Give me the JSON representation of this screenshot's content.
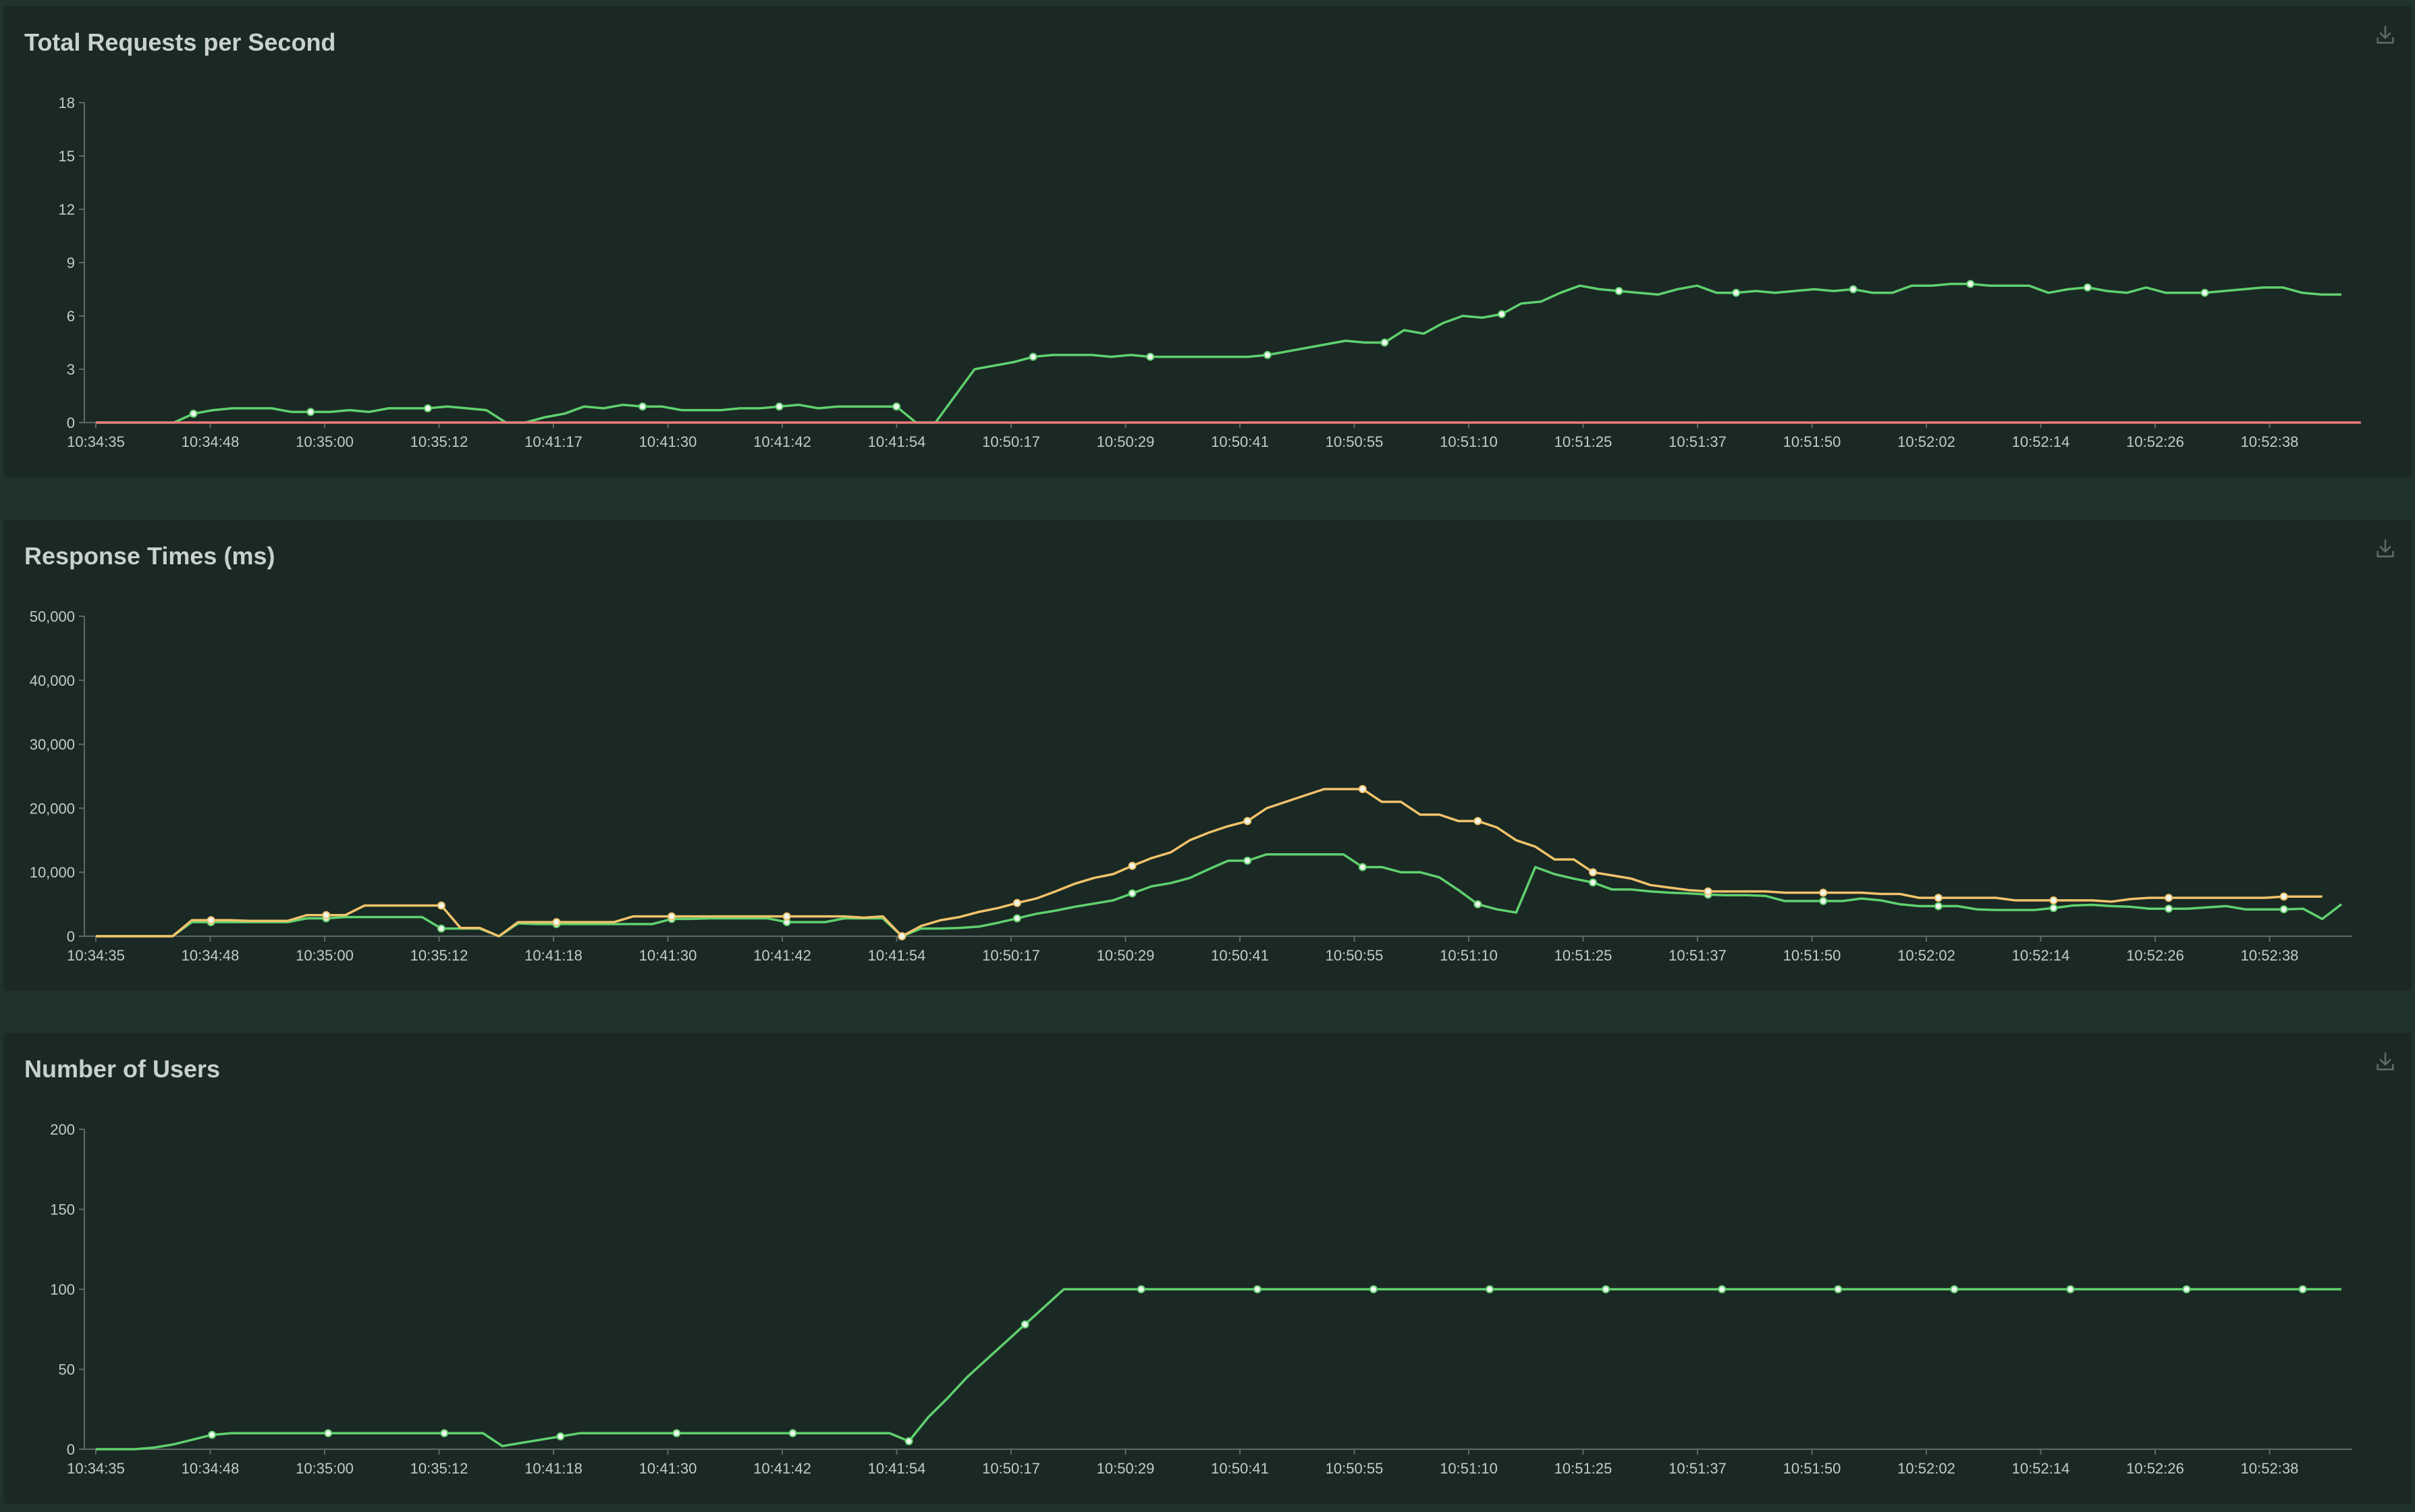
{
  "colors": {
    "page_bg": "#1f332c",
    "panel_bg": "#1b2924",
    "title": "#c8d1cd",
    "axis": "#5d6a65",
    "tick_text": "#c3cbc7",
    "green": "#5fd16e",
    "orange": "#f2c36b",
    "red": "#ef7b7b",
    "dot": "#f0f5ee",
    "icon": "#5f6b66"
  },
  "chart_data": [
    {
      "type": "line",
      "title": "Total Requests per Second",
      "download_icon": "download-icon",
      "ylim": [
        0,
        18
      ],
      "yticks": [
        0,
        3,
        6,
        9,
        12,
        15,
        18
      ],
      "ytick_labels": [
        "0",
        "3",
        "6",
        "9",
        "12",
        "15",
        "18"
      ],
      "xtick_labels": [
        "10:34:35",
        "10:34:48",
        "10:35:00",
        "10:35:12",
        "10:41:17",
        "10:41:30",
        "10:41:42",
        "10:41:54",
        "10:50:17",
        "10:50:29",
        "10:50:41",
        "10:50:55",
        "10:51:10",
        "10:51:25",
        "10:51:37",
        "10:51:50",
        "10:52:02",
        "10:52:14",
        "10:52:26",
        "10:52:38"
      ],
      "grid": false,
      "series": [
        {
          "color_key": "green",
          "values": [
            0,
            0,
            0,
            0,
            0,
            0.5,
            0.7,
            0.8,
            0.8,
            0.8,
            0.6,
            0.6,
            0.6,
            0.7,
            0.6,
            0.8,
            0.8,
            0.8,
            0.9,
            0.8,
            0.7,
            0,
            0,
            0.3,
            0.5,
            0.9,
            0.8,
            1.0,
            0.9,
            0.9,
            0.7,
            0.7,
            0.7,
            0.8,
            0.8,
            0.9,
            1.0,
            0.8,
            0.9,
            0.9,
            0.9,
            0.9,
            0,
            0,
            1.5,
            3.0,
            3.2,
            3.4,
            3.7,
            3.8,
            3.8,
            3.8,
            3.7,
            3.8,
            3.7,
            3.7,
            3.7,
            3.7,
            3.7,
            3.7,
            3.8,
            4.0,
            4.2,
            4.4,
            4.6,
            4.5,
            4.5,
            5.2,
            5.0,
            5.6,
            6.0,
            5.9,
            6.1,
            6.7,
            6.8,
            7.3,
            7.7,
            7.5,
            7.4,
            7.3,
            7.2,
            7.5,
            7.7,
            7.3,
            7.3,
            7.4,
            7.3,
            7.4,
            7.5,
            7.4,
            7.5,
            7.3,
            7.3,
            7.7,
            7.7,
            7.8,
            7.8,
            7.7,
            7.7,
            7.7,
            7.3,
            7.5,
            7.6,
            7.4,
            7.3,
            7.6,
            7.3,
            7.3,
            7.3,
            7.4,
            7.5,
            7.6,
            7.6,
            7.3,
            7.2,
            7.2
          ],
          "marker_indices": [
            5,
            11,
            17,
            28,
            35,
            41,
            48,
            54,
            60,
            66,
            72,
            78,
            84,
            90,
            96,
            102,
            108
          ]
        },
        {
          "color_key": "red",
          "values": [
            0,
            0,
            0,
            0,
            0,
            0,
            0,
            0,
            0,
            0,
            0,
            0,
            0,
            0,
            0,
            0,
            0,
            0,
            0,
            0,
            0,
            0,
            0,
            0,
            0,
            0,
            0,
            0,
            0,
            0,
            0,
            0,
            0,
            0,
            0,
            0,
            0,
            0,
            0,
            0,
            0,
            0,
            0,
            0,
            0,
            0,
            0,
            0,
            0,
            0,
            0,
            0,
            0,
            0,
            0,
            0,
            0,
            0,
            0,
            0,
            0,
            0,
            0,
            0,
            0,
            0,
            0,
            0,
            0,
            0,
            0,
            0,
            0,
            0,
            0,
            0,
            0,
            0,
            0,
            0,
            0,
            0,
            0,
            0,
            0,
            0,
            0,
            0,
            0,
            0,
            0,
            0,
            0,
            0,
            0,
            0,
            0,
            0,
            0,
            0,
            0,
            0,
            0,
            0,
            0,
            0,
            0,
            0,
            0,
            0,
            0,
            0,
            0,
            0,
            0,
            0,
            0
          ],
          "marker_indices": []
        }
      ]
    },
    {
      "type": "line",
      "title": "Response Times (ms)",
      "download_icon": "download-icon",
      "ylim": [
        0,
        50000
      ],
      "yticks": [
        0,
        10000,
        20000,
        30000,
        40000,
        50000
      ],
      "ytick_labels": [
        "0",
        "10,000",
        "20,000",
        "30,000",
        "40,000",
        "50,000"
      ],
      "xtick_labels": [
        "10:34:35",
        "10:34:48",
        "10:35:00",
        "10:35:12",
        "10:41:18",
        "10:41:30",
        "10:41:42",
        "10:41:54",
        "10:50:17",
        "10:50:29",
        "10:50:41",
        "10:50:55",
        "10:51:10",
        "10:51:25",
        "10:51:37",
        "10:51:50",
        "10:52:02",
        "10:52:14",
        "10:52:26",
        "10:52:38"
      ],
      "grid": false,
      "series": [
        {
          "color_key": "green",
          "values": [
            0,
            0,
            0,
            0,
            0,
            2200,
            2200,
            2200,
            2200,
            2200,
            2200,
            2800,
            2800,
            3000,
            3000,
            3000,
            3000,
            3000,
            1200,
            1200,
            1200,
            0,
            2000,
            1900,
            1900,
            1900,
            1900,
            1900,
            1900,
            1900,
            2700,
            2700,
            2800,
            2800,
            2800,
            2800,
            2200,
            2200,
            2200,
            2800,
            2800,
            2800,
            0,
            1200,
            1200,
            1300,
            1500,
            2100,
            2800,
            3500,
            4000,
            4600,
            5100,
            5600,
            6700,
            7800,
            8300,
            9100,
            10500,
            11800,
            11800,
            12800,
            12800,
            12800,
            12800,
            12800,
            10800,
            10800,
            10000,
            10000,
            9200,
            7200,
            5000,
            4200,
            3700,
            10800,
            9700,
            9000,
            8400,
            7300,
            7300,
            7000,
            6800,
            6700,
            6500,
            6400,
            6400,
            6300,
            5500,
            5500,
            5500,
            5500,
            5900,
            5600,
            5000,
            4700,
            4700,
            4700,
            4200,
            4100,
            4100,
            4100,
            4400,
            4800,
            4900,
            4700,
            4600,
            4300,
            4300,
            4300,
            4500,
            4700,
            4200,
            4200,
            4200,
            4300,
            2700,
            5000
          ],
          "marker_indices": [
            6,
            12,
            18,
            24,
            30,
            36,
            42,
            48,
            54,
            60,
            66,
            72,
            78,
            84,
            90,
            96,
            102,
            108,
            114
          ]
        },
        {
          "color_key": "orange",
          "values": [
            0,
            0,
            0,
            0,
            0,
            2500,
            2500,
            2500,
            2400,
            2400,
            2400,
            3300,
            3300,
            3300,
            4800,
            4800,
            4800,
            4800,
            4800,
            1300,
            1300,
            0,
            2200,
            2200,
            2200,
            2200,
            2200,
            2200,
            3100,
            3100,
            3100,
            3100,
            3100,
            3100,
            3100,
            3100,
            3100,
            3100,
            3100,
            3100,
            2900,
            3100,
            0,
            1600,
            2500,
            3000,
            3800,
            4400,
            5200,
            5900,
            7000,
            8200,
            9100,
            9700,
            11000,
            12200,
            13100,
            15000,
            16200,
            17200,
            18000,
            20000,
            21000,
            22000,
            23000,
            23000,
            23000,
            21000,
            21000,
            19000,
            19000,
            18000,
            18000,
            17000,
            15000,
            14000,
            12000,
            12000,
            10000,
            9500,
            9000,
            8000,
            7600,
            7200,
            7000,
            7000,
            7000,
            7000,
            6800,
            6800,
            6800,
            6800,
            6800,
            6600,
            6600,
            6000,
            6000,
            6000,
            6000,
            6000,
            5600,
            5600,
            5600,
            5600,
            5600,
            5400,
            5800,
            6000,
            6000,
            6000,
            6000,
            6000,
            6000,
            6000,
            6200,
            6200,
            6200
          ],
          "marker_indices": [
            6,
            12,
            18,
            24,
            30,
            36,
            42,
            48,
            54,
            60,
            66,
            72,
            78,
            84,
            90,
            96,
            102,
            108,
            114
          ]
        }
      ]
    },
    {
      "type": "line",
      "title": "Number of Users",
      "download_icon": "download-icon",
      "ylim": [
        0,
        200
      ],
      "yticks": [
        0,
        50,
        100,
        150,
        200
      ],
      "ytick_labels": [
        "0",
        "50",
        "100",
        "150",
        "200"
      ],
      "xtick_labels": [
        "10:34:35",
        "10:34:48",
        "10:35:00",
        "10:35:12",
        "10:41:18",
        "10:41:30",
        "10:41:42",
        "10:41:54",
        "10:50:17",
        "10:50:29",
        "10:50:41",
        "10:50:55",
        "10:51:10",
        "10:51:25",
        "10:51:37",
        "10:51:50",
        "10:52:02",
        "10:52:14",
        "10:52:26",
        "10:52:38"
      ],
      "grid": false,
      "series": [
        {
          "color_key": "green",
          "values": [
            0,
            0,
            0,
            1,
            3,
            6,
            9,
            10,
            10,
            10,
            10,
            10,
            10,
            10,
            10,
            10,
            10,
            10,
            10,
            10,
            10,
            2,
            4,
            6,
            8,
            10,
            10,
            10,
            10,
            10,
            10,
            10,
            10,
            10,
            10,
            10,
            10,
            10,
            10,
            10,
            10,
            10,
            5,
            20,
            32,
            45,
            56,
            67,
            78,
            89,
            100,
            100,
            100,
            100,
            100,
            100,
            100,
            100,
            100,
            100,
            100,
            100,
            100,
            100,
            100,
            100,
            100,
            100,
            100,
            100,
            100,
            100,
            100,
            100,
            100,
            100,
            100,
            100,
            100,
            100,
            100,
            100,
            100,
            100,
            100,
            100,
            100,
            100,
            100,
            100,
            100,
            100,
            100,
            100,
            100,
            100,
            100,
            100,
            100,
            100,
            100,
            100,
            100,
            100,
            100,
            100,
            100,
            100,
            100,
            100,
            100,
            100,
            100,
            100,
            100,
            100,
            100
          ],
          "marker_indices": [
            6,
            12,
            18,
            24,
            30,
            36,
            42,
            48,
            54,
            60,
            66,
            72,
            78,
            84,
            90,
            96,
            102,
            108,
            114
          ]
        }
      ]
    }
  ]
}
